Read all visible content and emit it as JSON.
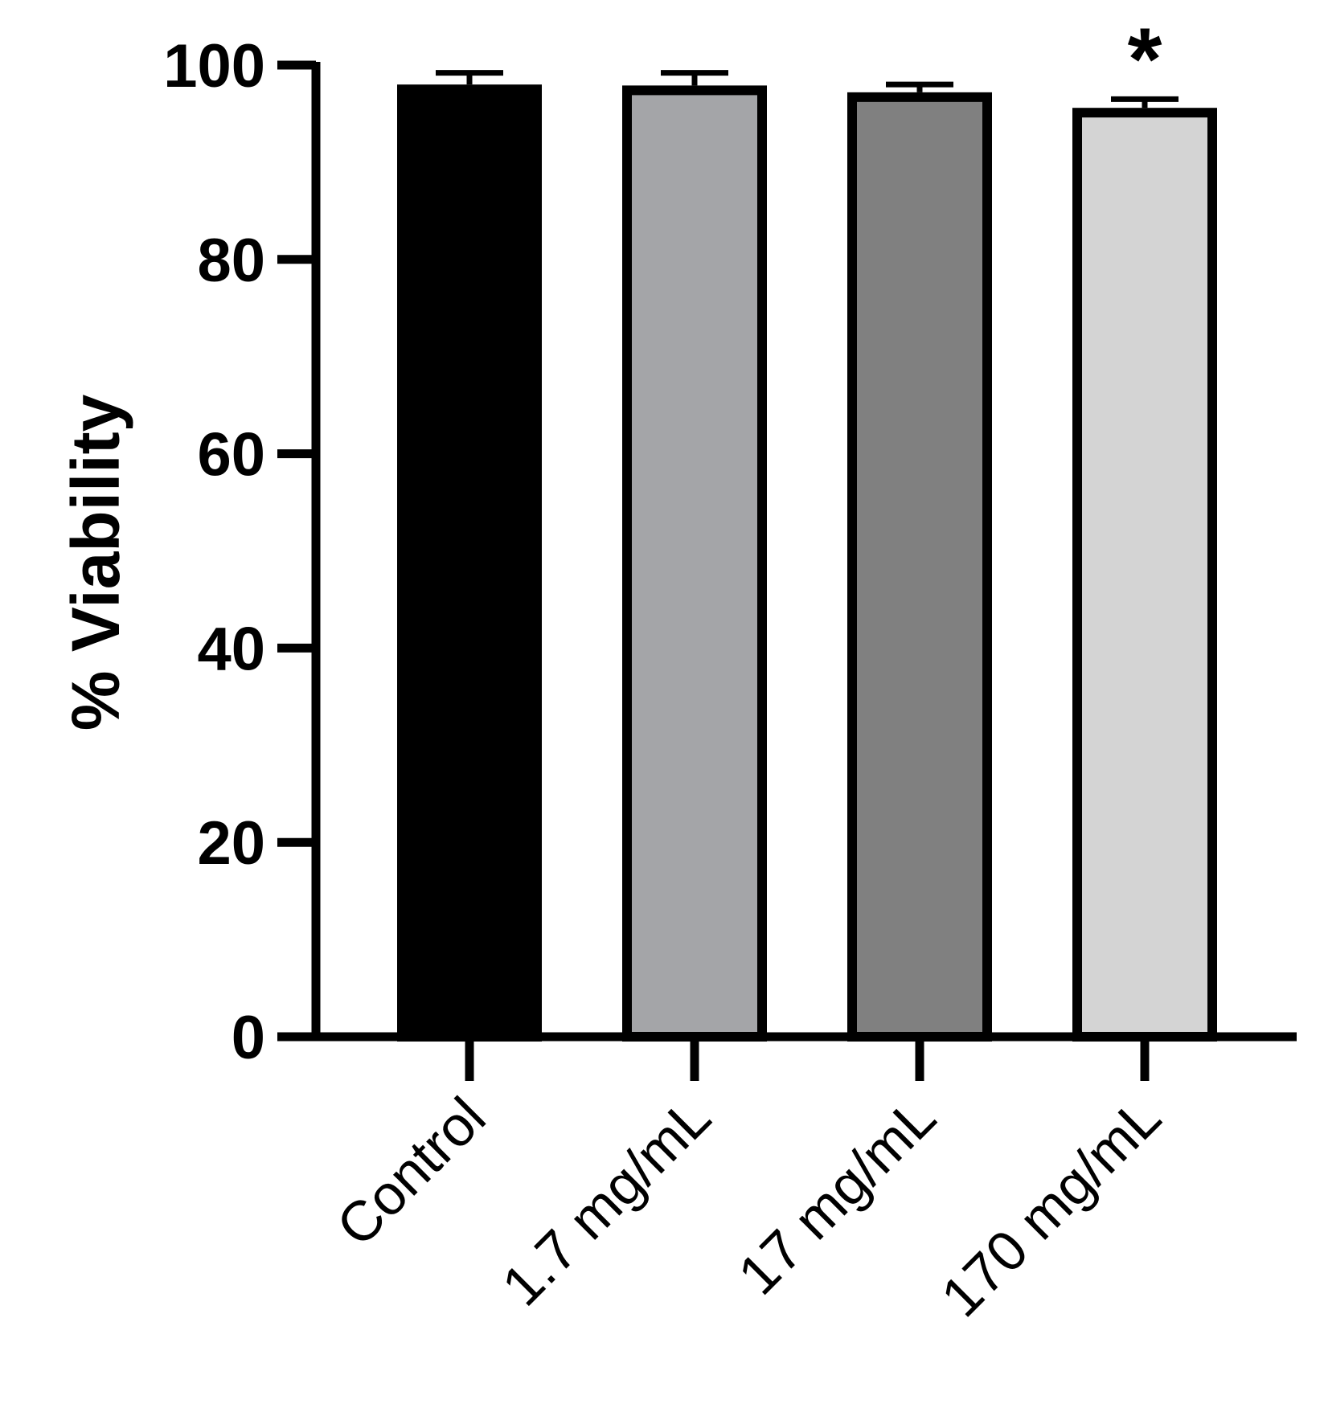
{
  "chart_data": {
    "type": "bar",
    "title": "",
    "xlabel": "",
    "ylabel": "% Viability",
    "categories": [
      "Control",
      "1.7 mg/mL",
      "17 mg/mL",
      "170 mg/mL"
    ],
    "values": [
      98.0,
      97.9,
      97.2,
      95.6
    ],
    "errors": [
      1.2,
      1.3,
      0.8,
      0.9
    ],
    "colors": [
      "#000000",
      "#a4a5a8",
      "#808080",
      "#d4d4d4"
    ],
    "annotations": [
      "",
      "",
      "",
      "*"
    ],
    "ylim": [
      0,
      100
    ],
    "yticks": [
      "0",
      "20",
      "40",
      "60",
      "80",
      "100"
    ],
    "grid": false,
    "legend": "none"
  }
}
